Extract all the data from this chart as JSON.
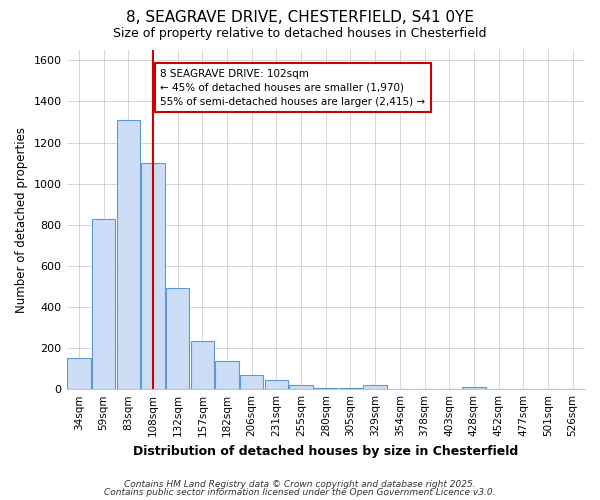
{
  "title_line1": "8, SEAGRAVE DRIVE, CHESTERFIELD, S41 0YE",
  "title_line2": "Size of property relative to detached houses in Chesterfield",
  "xlabel": "Distribution of detached houses by size in Chesterfield",
  "ylabel": "Number of detached properties",
  "bar_labels": [
    "34sqm",
    "59sqm",
    "83sqm",
    "108sqm",
    "132sqm",
    "157sqm",
    "182sqm",
    "206sqm",
    "231sqm",
    "255sqm",
    "280sqm",
    "305sqm",
    "329sqm",
    "354sqm",
    "378sqm",
    "403sqm",
    "428sqm",
    "452sqm",
    "477sqm",
    "501sqm",
    "526sqm"
  ],
  "bar_values": [
    150,
    830,
    1310,
    1100,
    490,
    235,
    135,
    70,
    45,
    20,
    5,
    5,
    20,
    0,
    0,
    0,
    10,
    0,
    0,
    0,
    0
  ],
  "bar_color": "#ccddf5",
  "bar_edgecolor": "#5b9bd5",
  "ylim": [
    0,
    1650
  ],
  "yticks": [
    0,
    200,
    400,
    600,
    800,
    1000,
    1200,
    1400,
    1600
  ],
  "vline_x": 3.0,
  "vline_color": "#cc0000",
  "annotation_text": "8 SEAGRAVE DRIVE: 102sqm\n← 45% of detached houses are smaller (1,970)\n55% of semi-detached houses are larger (2,415) →",
  "annotation_box_edgecolor": "#cc0000",
  "annotation_box_facecolor": "#ffffff",
  "grid_color": "#c8c8c8",
  "background_color": "#ffffff",
  "plot_bg_color": "#ffffff",
  "footnote_line1": "Contains HM Land Registry data © Crown copyright and database right 2025.",
  "footnote_line2": "Contains public sector information licensed under the Open Government Licence v3.0.",
  "figsize": [
    6.0,
    5.0
  ],
  "dpi": 100
}
